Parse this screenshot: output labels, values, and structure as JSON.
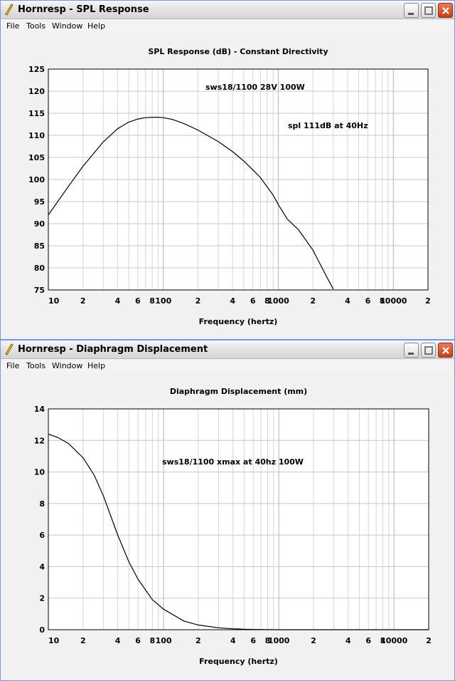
{
  "windows": [
    {
      "title": "Hornresp - SPL Response",
      "menu": [
        "File",
        "Tools",
        "Window",
        "Help"
      ],
      "chart_title": "SPL Response (dB) - Constant Directivity",
      "annotations": [
        "sws18/1100 28V 100W",
        "spl 111dB at 40Hz"
      ]
    },
    {
      "title": "Hornresp - Diaphragm Displacement",
      "menu": [
        "File",
        "Tools",
        "Window",
        "Help"
      ],
      "chart_title": "Diaphragm Displacement (mm)",
      "annotations": [
        "sws18/1100 xmax at 40hz 100W"
      ]
    }
  ],
  "icons": {
    "app": "pencil-icon",
    "minimize": "minimize-icon",
    "maximize": "maximize-icon",
    "close": "close-icon"
  },
  "colors": {
    "close_button": "#c3401c",
    "curve": "#000000",
    "grid": "#c8c8c8"
  },
  "chart_data": [
    {
      "type": "line",
      "title": "SPL Response (dB) - Constant Directivity",
      "xlabel": "Frequency (hertz)",
      "ylabel": "",
      "x_scale": "log",
      "xlim": [
        10,
        20000
      ],
      "ylim": [
        75,
        125
      ],
      "x_tick_labels": [
        "10",
        "2",
        "4",
        "6",
        "8",
        "100",
        "2",
        "4",
        "6",
        "8",
        "1000",
        "2",
        "4",
        "6",
        "8",
        "10000",
        "2"
      ],
      "y_ticks": [
        75,
        80,
        85,
        90,
        95,
        100,
        105,
        110,
        115,
        120,
        125
      ],
      "grid": true,
      "series": [
        {
          "x": [
            10,
            15,
            20,
            30,
            40,
            50,
            60,
            70,
            80,
            90,
            100,
            120,
            150,
            200,
            300,
            400,
            500,
            600,
            700,
            800,
            900,
            1000,
            1200,
            1500,
            2000,
            2500,
            3000
          ],
          "y": [
            92.0,
            98.5,
            103.0,
            108.5,
            111.5,
            113.0,
            113.7,
            114.0,
            114.1,
            114.1,
            114.0,
            113.6,
            112.7,
            111.2,
            108.6,
            106.3,
            104.2,
            102.2,
            100.4,
            98.3,
            96.5,
            94.3,
            91.0,
            88.6,
            84.0,
            79.1,
            75.2
          ]
        }
      ]
    },
    {
      "type": "line",
      "title": "Diaphragm Displacement (mm)",
      "xlabel": "Frequency (hertz)",
      "ylabel": "",
      "x_scale": "log",
      "xlim": [
        10,
        20000
      ],
      "ylim": [
        0,
        14
      ],
      "x_tick_labels": [
        "10",
        "2",
        "4",
        "6",
        "8",
        "100",
        "2",
        "4",
        "6",
        "8",
        "1000",
        "2",
        "4",
        "6",
        "8",
        "10000",
        "2"
      ],
      "y_ticks": [
        0,
        2,
        4,
        6,
        8,
        10,
        12,
        14
      ],
      "grid": true,
      "series": [
        {
          "x": [
            10,
            12,
            15,
            20,
            25,
            30,
            40,
            50,
            60,
            70,
            80,
            100,
            150,
            200,
            300,
            400,
            500,
            600,
            1000,
            20000
          ],
          "y": [
            12.4,
            12.2,
            11.8,
            10.9,
            9.8,
            8.5,
            6.0,
            4.3,
            3.2,
            2.5,
            1.9,
            1.3,
            0.55,
            0.3,
            0.12,
            0.06,
            0.03,
            0.02,
            0.0,
            0.0
          ]
        }
      ]
    }
  ]
}
